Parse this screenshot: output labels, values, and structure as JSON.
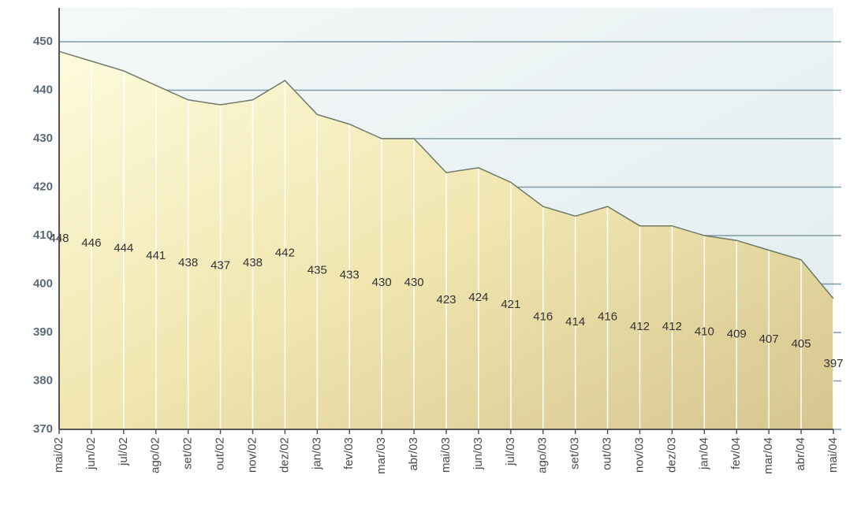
{
  "chart_data": {
    "type": "area",
    "categories": [
      "mai/02",
      "jun/02",
      "jul/02",
      "ago/02",
      "set/02",
      "out/02",
      "nov/02",
      "dez/02",
      "jan/03",
      "fev/03",
      "mar/03",
      "abr/03",
      "mai/03",
      "jun/03",
      "jul/03",
      "ago/03",
      "set/03",
      "out/03",
      "nov/03",
      "dez/03",
      "jan/04",
      "fev/04",
      "mar/04",
      "abr/04",
      "mai/04"
    ],
    "values": [
      448,
      446,
      444,
      441,
      438,
      437,
      438,
      442,
      435,
      433,
      430,
      430,
      423,
      424,
      421,
      416,
      414,
      416,
      412,
      412,
      410,
      409,
      407,
      405,
      397
    ],
    "ylim": [
      370,
      457
    ],
    "yticks": [
      370,
      380,
      390,
      400,
      410,
      420,
      430,
      440,
      450
    ],
    "grid": true
  }
}
